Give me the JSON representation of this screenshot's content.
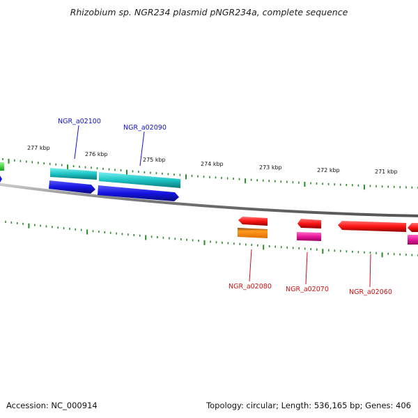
{
  "title": "Rhizobium sp. NGR234 plasmid pNGR234a, complete sequence",
  "footer": {
    "accession": "Accession: NC_000914",
    "topology": "Topology: circular; Length: 536,165 bp; Genes: 406"
  },
  "scale_labels": [
    "277 kbp",
    "276 kbp",
    "275 kbp",
    "274 kbp",
    "273 kbp",
    "272 kbp",
    "271 kbp"
  ],
  "genes": [
    {
      "name": "NGR_a02100",
      "strand": "forward",
      "color": "#1010cc"
    },
    {
      "name": "NGR_a02090",
      "strand": "forward",
      "color": "#1010cc"
    },
    {
      "name": "NGR_a02080",
      "strand": "reverse",
      "color": "#cc1010"
    },
    {
      "name": "NGR_a02070",
      "strand": "reverse",
      "color": "#cc1010"
    },
    {
      "name": "NGR_a02060",
      "strand": "reverse",
      "color": "#cc1010"
    }
  ],
  "colors": {
    "cds_forward": "#1a1ae6",
    "cds_reverse": "#ff1a1a",
    "gene_forward": "#1fc8c8",
    "gene_reverse_orange": "#ff8c1a",
    "gene_reverse_pink": "#e6189a",
    "backbone": "#8c8c8c",
    "ticks": "#2a8a2a",
    "partial_left": "#2cc82c"
  }
}
